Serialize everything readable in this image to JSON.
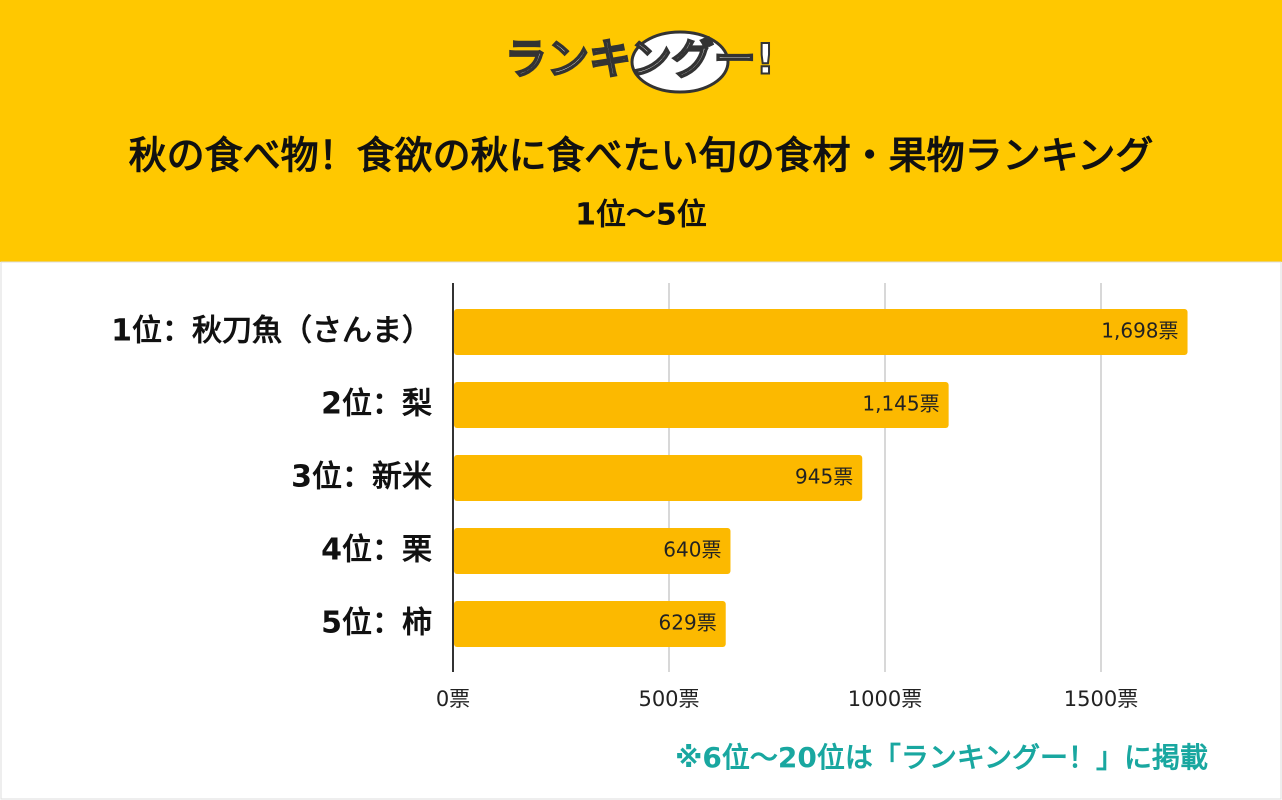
{
  "logo": "ランキングー!",
  "chart_data": {
    "type": "bar",
    "orientation": "horizontal",
    "title": "秋の食べ物！食欲の秋に食べたい旬の食材・果物ランキング",
    "subtitle": "1位〜5位",
    "categories": [
      "1位：秋刀魚（さんま）",
      "2位：梨",
      "3位：新米",
      "4位：栗",
      "5位：柿"
    ],
    "values": [
      1698,
      1145,
      945,
      640,
      629
    ],
    "value_labels": [
      "1,698票",
      "1,145票",
      "945票",
      "640票",
      "629票"
    ],
    "color": "#fcb900",
    "xlim": [
      0,
      1800
    ],
    "xticks": [
      {
        "value": 0,
        "label": "0票"
      },
      {
        "value": 500,
        "label": "500票"
      },
      {
        "value": 1000,
        "label": "1000票"
      },
      {
        "value": 1500,
        "label": "1500票"
      }
    ],
    "grid": true,
    "note": "※6位〜20位は「ランキングー！」に掲載"
  }
}
